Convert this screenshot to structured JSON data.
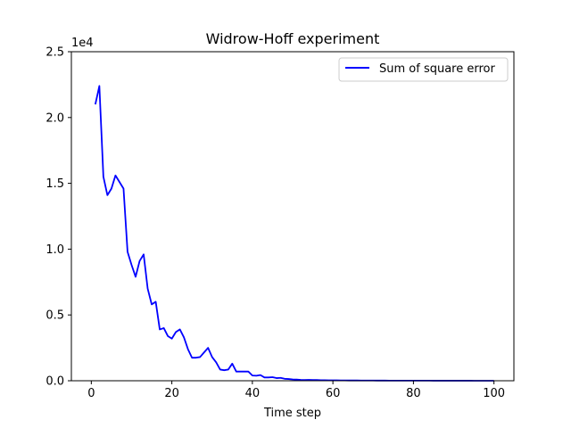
{
  "chart_data": {
    "type": "line",
    "title": "Widrow-Hoff experiment",
    "xlabel": "Time step",
    "ylabel": "",
    "y_scale_label": "1e4",
    "xlim": [
      -4.95,
      104.95
    ],
    "ylim": [
      0,
      25000
    ],
    "xticks": [
      0,
      20,
      40,
      60,
      80,
      100
    ],
    "xtick_labels": [
      "0",
      "20",
      "40",
      "60",
      "80",
      "100"
    ],
    "yticks": [
      0,
      5000,
      10000,
      15000,
      20000,
      25000
    ],
    "ytick_labels": [
      "0.0",
      "0.5",
      "1.0",
      "1.5",
      "2.0",
      "2.5"
    ],
    "grid": false,
    "legend_position": "top-right",
    "series": [
      {
        "name": "Sum of square error",
        "color": "#0000ff",
        "x": [
          1,
          2,
          3,
          4,
          5,
          6,
          7,
          8,
          9,
          10,
          11,
          12,
          13,
          14,
          15,
          16,
          17,
          18,
          19,
          20,
          21,
          22,
          23,
          24,
          25,
          26,
          27,
          28,
          29,
          30,
          31,
          32,
          33,
          34,
          35,
          36,
          37,
          38,
          39,
          40,
          41,
          42,
          43,
          44,
          45,
          46,
          47,
          48,
          49,
          50,
          51,
          52,
          53,
          54,
          55,
          56,
          57,
          58,
          59,
          60,
          61,
          62,
          63,
          64,
          65,
          66,
          67,
          68,
          69,
          70,
          71,
          72,
          73,
          74,
          75,
          76,
          77,
          78,
          79,
          80,
          81,
          82,
          83,
          84,
          85,
          86,
          87,
          88,
          89,
          90,
          91,
          92,
          93,
          94,
          95,
          96,
          97,
          98,
          99,
          100
        ],
        "y": [
          21000,
          22400,
          15500,
          14100,
          14600,
          15600,
          15100,
          14600,
          9800,
          8800,
          7900,
          9100,
          9600,
          7000,
          5800,
          6000,
          3900,
          4000,
          3400,
          3200,
          3700,
          3900,
          3300,
          2400,
          1750,
          1750,
          1800,
          2150,
          2500,
          1800,
          1400,
          850,
          800,
          850,
          1300,
          700,
          700,
          700,
          700,
          400,
          380,
          430,
          250,
          250,
          270,
          200,
          220,
          150,
          130,
          100,
          90,
          70,
          60,
          70,
          55,
          55,
          40,
          40,
          35,
          30,
          30,
          25,
          25,
          22,
          20,
          20,
          18,
          18,
          16,
          15,
          14,
          13,
          12,
          11,
          10,
          10,
          9,
          9,
          8,
          8,
          7,
          7,
          6,
          6,
          5,
          5,
          5,
          4,
          4,
          4,
          3,
          3,
          3,
          3,
          2,
          2,
          2,
          2,
          2,
          2
        ]
      }
    ]
  }
}
